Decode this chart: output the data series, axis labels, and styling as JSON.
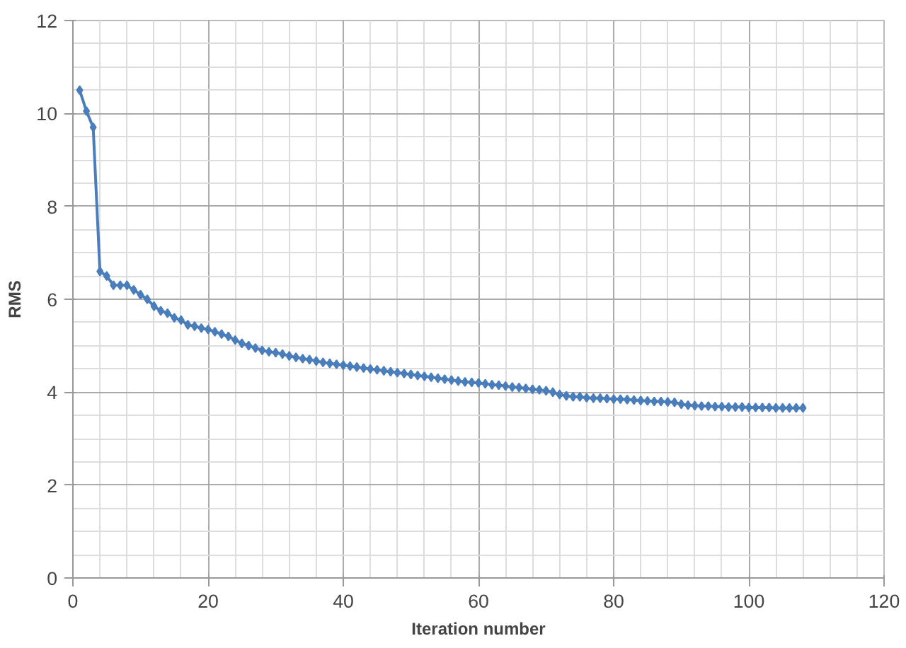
{
  "chart_data": {
    "type": "line",
    "xlabel": "Iteration number",
    "ylabel": "RMS",
    "x": [
      1,
      2,
      3,
      4,
      5,
      6,
      7,
      8,
      9,
      10,
      11,
      12,
      13,
      14,
      15,
      16,
      17,
      18,
      19,
      20,
      21,
      22,
      23,
      24,
      25,
      26,
      27,
      28,
      29,
      30,
      31,
      32,
      33,
      34,
      35,
      36,
      37,
      38,
      39,
      40,
      41,
      42,
      43,
      44,
      45,
      46,
      47,
      48,
      49,
      50,
      51,
      52,
      53,
      54,
      55,
      56,
      57,
      58,
      59,
      60,
      61,
      62,
      63,
      64,
      65,
      66,
      67,
      68,
      69,
      70,
      71,
      72,
      73,
      74,
      75,
      76,
      77,
      78,
      79,
      80,
      81,
      82,
      83,
      84,
      85,
      86,
      87,
      88,
      89,
      90,
      91,
      92,
      93,
      94,
      95,
      96,
      97,
      98,
      99,
      100,
      101,
      102,
      103,
      104,
      105,
      106,
      107,
      108
    ],
    "series": [
      {
        "color": "#4a7ebb",
        "values": [
          10.5,
          10.05,
          9.7,
          6.6,
          6.5,
          6.3,
          6.3,
          6.3,
          6.2,
          6.1,
          6.0,
          5.85,
          5.75,
          5.7,
          5.6,
          5.55,
          5.45,
          5.42,
          5.38,
          5.35,
          5.3,
          5.25,
          5.2,
          5.12,
          5.05,
          5.0,
          4.95,
          4.9,
          4.87,
          4.85,
          4.82,
          4.78,
          4.75,
          4.72,
          4.7,
          4.67,
          4.64,
          4.62,
          4.6,
          4.58,
          4.56,
          4.54,
          4.52,
          4.5,
          4.48,
          4.46,
          4.44,
          4.42,
          4.4,
          4.38,
          4.36,
          4.34,
          4.32,
          4.3,
          4.28,
          4.26,
          4.24,
          4.22,
          4.21,
          4.2,
          4.18,
          4.16,
          4.15,
          4.13,
          4.11,
          4.1,
          4.08,
          4.06,
          4.05,
          4.03,
          4.0,
          3.95,
          3.92,
          3.9,
          3.9,
          3.88,
          3.87,
          3.87,
          3.86,
          3.85,
          3.85,
          3.84,
          3.83,
          3.82,
          3.81,
          3.8,
          3.8,
          3.79,
          3.78,
          3.74,
          3.72,
          3.71,
          3.7,
          3.7,
          3.69,
          3.69,
          3.68,
          3.68,
          3.68,
          3.67,
          3.67,
          3.67,
          3.67,
          3.66,
          3.66,
          3.66,
          3.66,
          3.66
        ]
      }
    ],
    "xlim": [
      0,
      120
    ],
    "xticks": [
      0,
      20,
      40,
      60,
      80,
      100,
      120
    ],
    "ylim": [
      0,
      12
    ],
    "yticks": [
      0,
      2,
      4,
      6,
      8,
      10,
      12
    ],
    "grid": true,
    "marker": "diamond",
    "line_style": "solid"
  }
}
